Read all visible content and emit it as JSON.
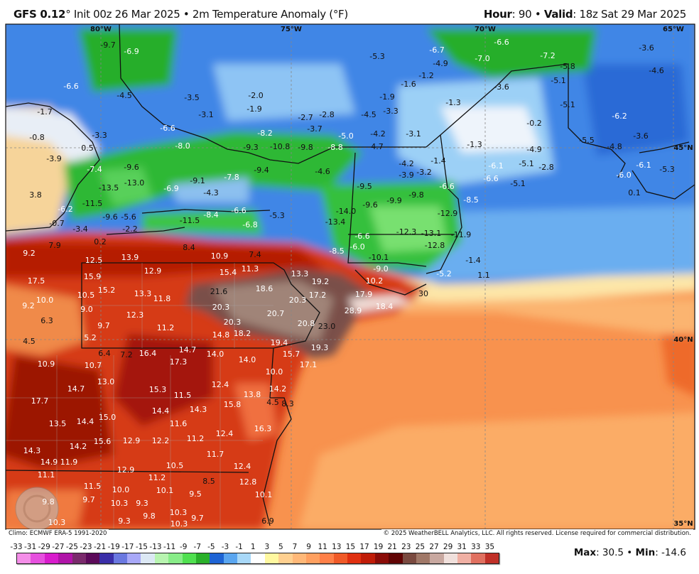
{
  "header": {
    "model": "GFS 0.12",
    "deg": "°",
    "title_rest": " Init 00z 26 Mar 2025 • 2m Temperature Anomaly (°F)",
    "hour_label": "Hour",
    "hour_value": ": 90 • ",
    "valid_label": "Valid",
    "valid_value": ": 18z Sat 29 Mar 2025"
  },
  "map": {
    "coords": [
      "80°W",
      "75°W",
      "70°W",
      "65°W",
      "45°N",
      "40°N",
      "35°N"
    ],
    "labels": [
      "-9.7",
      "-6.9",
      "-6.6",
      "-4.5",
      "-3.5",
      "-2.0",
      "-1.9",
      "-3.1",
      "-6.6",
      "-2.7",
      "-2.8",
      "-3.7",
      "-8.2",
      "-8.0",
      "-9.3",
      "-10.8",
      "-9.8",
      "-8.8",
      "-5.0",
      "-4.6",
      "-9.4",
      "-7.8",
      "-9.1",
      "-4.3",
      "-6.9",
      "-13.0",
      "-13.5",
      "-9.6",
      "-7.4",
      "-0.8",
      "-1.7",
      "0.5",
      "-3.9",
      "-3.3",
      "3.8",
      "-6.2",
      "-11.5",
      "-9.6",
      "-5.6",
      "-0.7",
      "-3.4",
      "-2.2",
      "0.2",
      "-11.5",
      "-8.4",
      "-6.6",
      "-6.8",
      "-5.3",
      "-14.0",
      "-13.4",
      "-5.3",
      "-6.7",
      "-4.9",
      "-6.6",
      "-7.0",
      "-1.2",
      "-1.6",
      "-1.9",
      "-3.3",
      "-4.5",
      "-1.3",
      "-3.6",
      "-7.2",
      "-5.8",
      "-5.1",
      "-3.6",
      "-4.6",
      "-5.1",
      "-6.2",
      "-0.2",
      "-4.2",
      "-3.1",
      "-4.7",
      "-1.3",
      "-4.9",
      "-5.1",
      "-5.5",
      "-4.8",
      "-3.6",
      "-6.1",
      "-5.3",
      "-6.0",
      "0.1",
      "-4.2",
      "-3.9",
      "-3.2",
      "-1.4",
      "-6.1",
      "-6.6",
      "-2.8",
      "-5.1",
      "-6.6",
      "-8.5",
      "-9.5",
      "-9.6",
      "-9.9",
      "-9.8",
      "-12.9",
      "-12.3",
      "-13.1",
      "-11.9",
      "-12.8",
      "-6.6",
      "-6.0",
      "-8.5",
      "-10.1",
      "-9.0",
      "-5.2",
      "-1.4",
      "30",
      "1.1",
      "9.2",
      "7.9",
      "12.5",
      "13.9",
      "8.4",
      "10.9",
      "7.4",
      "11.3",
      "17.5",
      "15.9",
      "12.9",
      "15.4",
      "13.3",
      "19.2",
      "15.2",
      "10.5",
      "13.3",
      "11.8",
      "21.6",
      "18.6",
      "17.2",
      "20.3",
      "17.9",
      "10.0",
      "9.2",
      "9.0",
      "12.3",
      "20.3",
      "20.7",
      "28.9",
      "18.4",
      "10.2",
      "6.3",
      "9.7",
      "11.2",
      "20.3",
      "14.8",
      "18.2",
      "20.8",
      "23.0",
      "5.2",
      "4.5",
      "19.4",
      "15.7",
      "19.3",
      "6.4",
      "7.2",
      "16.4",
      "14.7",
      "14.0",
      "14.0",
      "17.1",
      "10.9",
      "10.7",
      "17.3",
      "10.0",
      "13.0",
      "14.7",
      "15.3",
      "12.4",
      "11.5",
      "14.2",
      "13.8",
      "17.7",
      "15.8",
      "14.3",
      "4.5",
      "8.3",
      "14.4",
      "11.6",
      "15.0",
      "13.5",
      "14.4",
      "16.3",
      "12.4",
      "15.6",
      "14.2",
      "12.9",
      "12.2",
      "11.2",
      "14.3",
      "14.9",
      "11.9",
      "11.7",
      "10.5",
      "12.4",
      "12.9",
      "11.1",
      "11.2",
      "8.5",
      "12.8",
      "11.5",
      "10.0",
      "10.1",
      "9.5",
      "10.1",
      "9.8",
      "9.7",
      "10.3",
      "9.8",
      "10.3",
      "10.3",
      "9.7",
      "9.3",
      "9.3",
      "10.3",
      "6.9"
    ],
    "watermark": "WeatherBELL"
  },
  "footer": {
    "climo": "Climo: ECMWF ERA-5 1991-2020",
    "copyright": "© 2025 WeatherBELL Analytics, LLC. All rights reserved. License required for commercial distribution."
  },
  "colorbar": {
    "ticks": [
      "-33",
      "-31",
      "-29",
      "-27",
      "-25",
      "-23",
      "-21",
      "-19",
      "-17",
      "-15",
      "-13",
      "-11",
      "-9",
      "-7",
      "-5",
      "-3",
      "-1",
      "1",
      "3",
      "5",
      "7",
      "9",
      "11",
      "13",
      "15",
      "17",
      "19",
      "21",
      "23",
      "25",
      "27",
      "29",
      "31",
      "33",
      "35"
    ],
    "colors": [
      "#f48ee8",
      "#e650de",
      "#d81ccc",
      "#b014a8",
      "#7a2a6c",
      "#5c0a5a",
      "#3a2ea8",
      "#6a78e0",
      "#a8a8f8",
      "#dce8f4",
      "#b8f4b0",
      "#88ec88",
      "#50e050",
      "#2ab02a",
      "#1e64d4",
      "#5aa6f0",
      "#a8d8f8",
      "#ffffff",
      "#fff8a0",
      "#ffd090",
      "#ffb878",
      "#ffa060",
      "#ff8048",
      "#f05a28",
      "#e03010",
      "#c01c08",
      "#8a0c08",
      "#600404",
      "#7a4a40",
      "#a07868",
      "#c8a8a0",
      "#f0e0dc",
      "#f0b0a4",
      "#e07060",
      "#c03028"
    ]
  },
  "stats": {
    "max_label": "Max",
    "max_value": ": 30.5 • ",
    "min_label": "Min",
    "min_value": ": -14.6"
  }
}
